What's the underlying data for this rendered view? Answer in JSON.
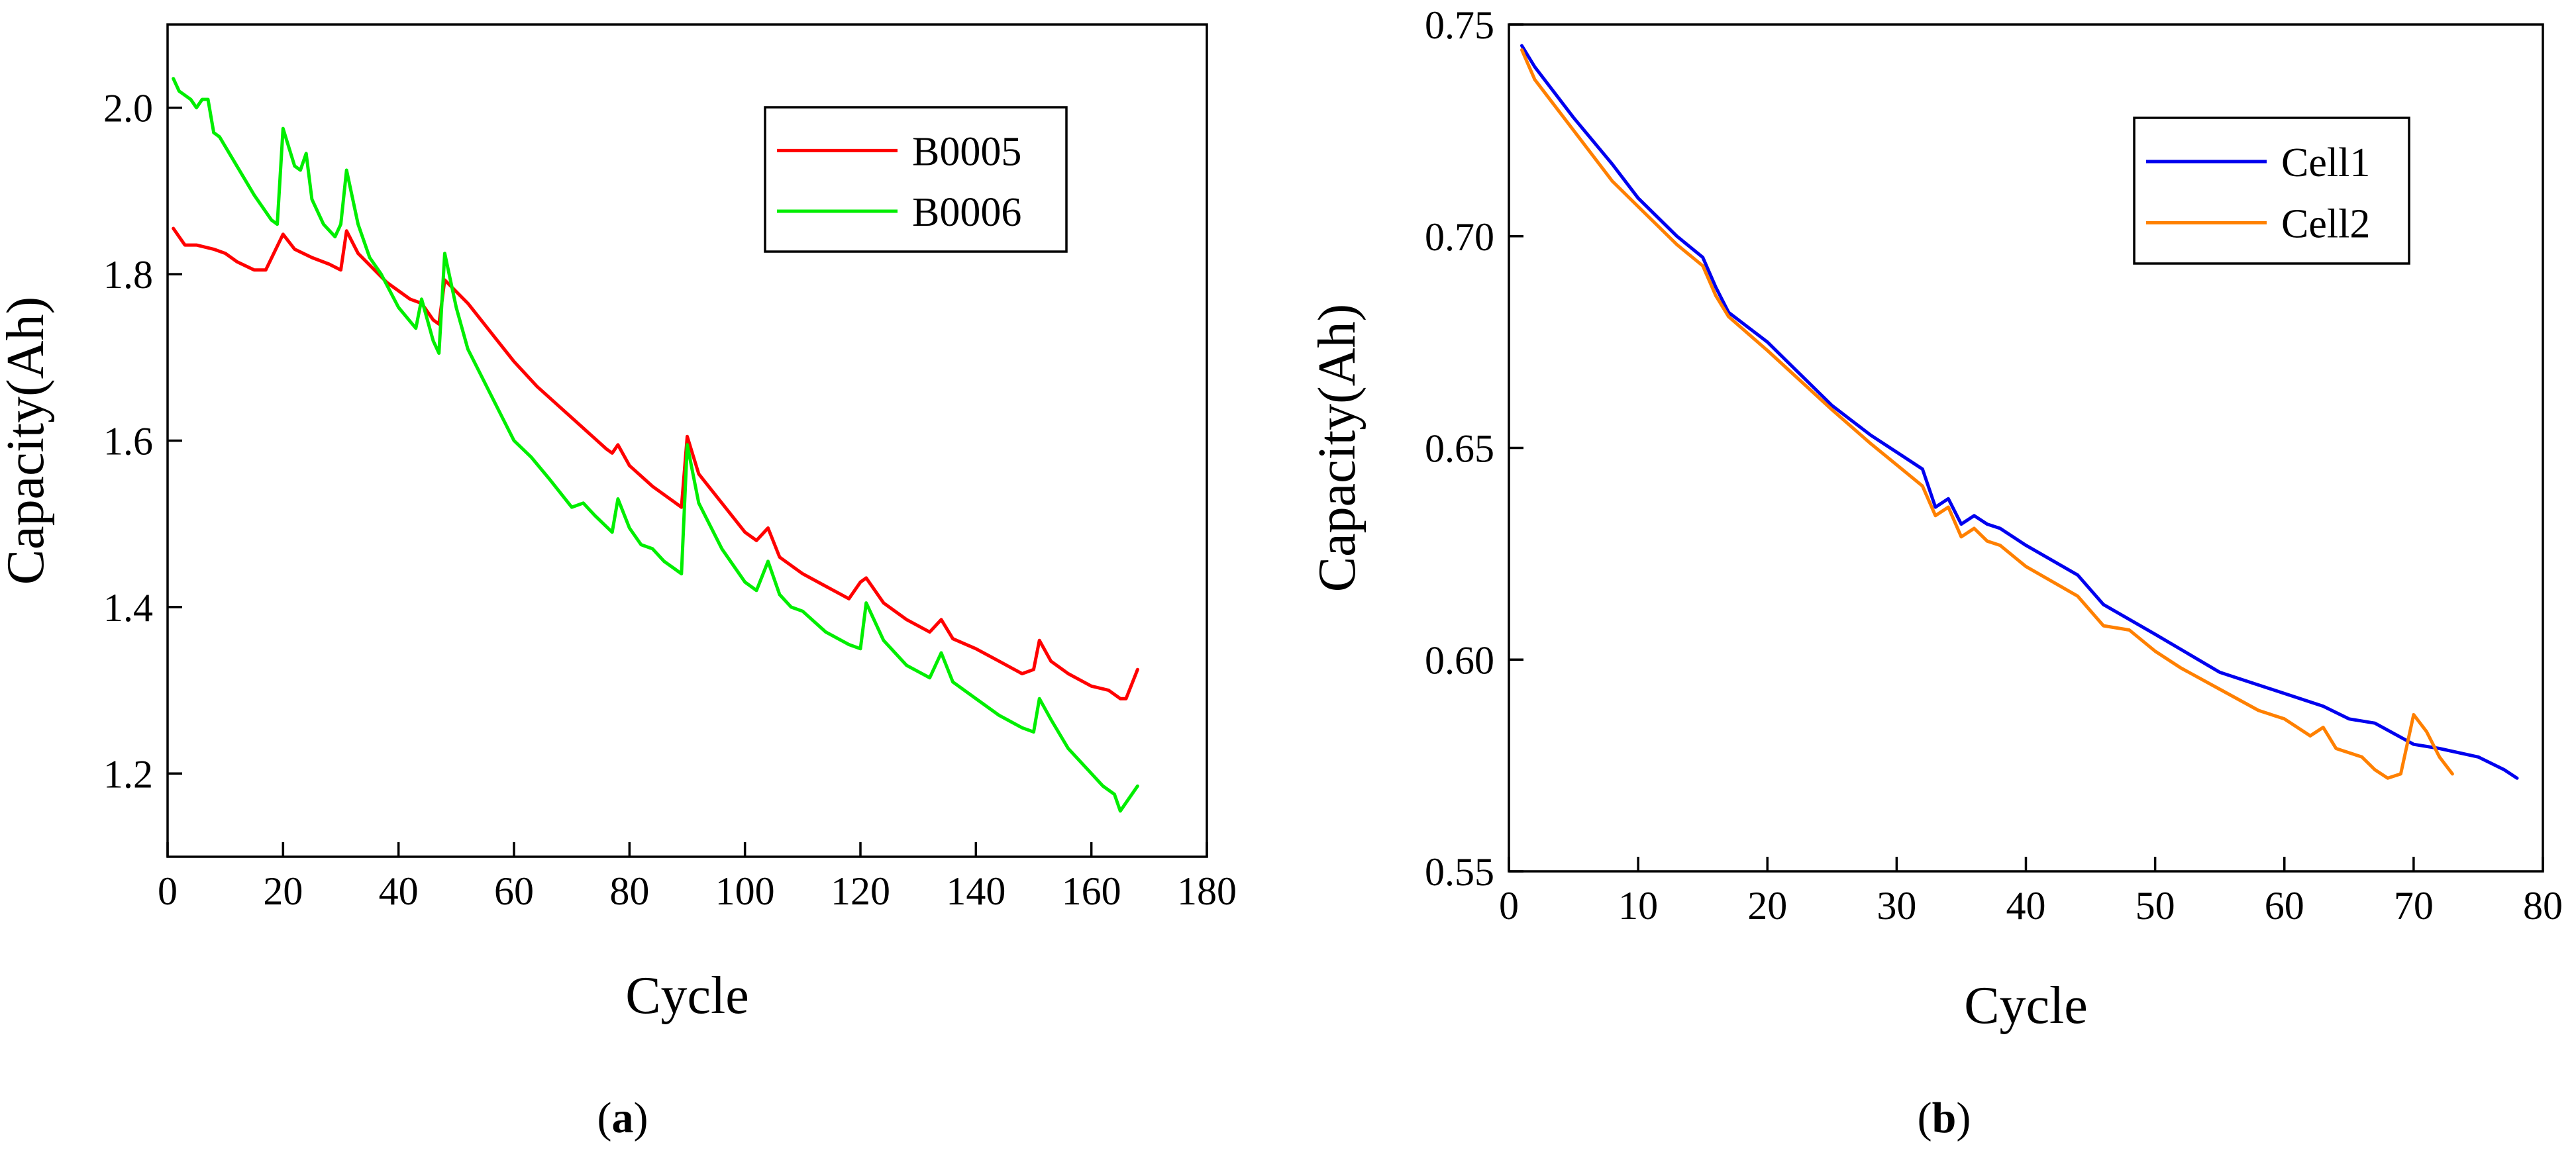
{
  "chart_data": [
    {
      "type": "line",
      "panel_label": "(a)",
      "panel_letter": "a",
      "xlabel": "Cycle",
      "ylabel": "Capacity(Ah)",
      "xlim": [
        0,
        180
      ],
      "ylim": [
        1.1,
        2.1
      ],
      "xticks": [
        0,
        20,
        40,
        60,
        80,
        100,
        120,
        140,
        160,
        180
      ],
      "yticks": [
        1.2,
        1.4,
        1.6,
        1.8,
        2.0
      ],
      "xtick_labels": [
        "0",
        "20",
        "40",
        "60",
        "80",
        "100",
        "120",
        "140",
        "160",
        "180"
      ],
      "ytick_labels": [
        "1.2",
        "1.4",
        "1.6",
        "1.8",
        "2.0"
      ],
      "legend_position": "top-right",
      "series": [
        {
          "name": "B0005",
          "color": "#ff0000",
          "x": [
            1,
            3,
            5,
            8,
            10,
            12,
            15,
            17,
            20,
            22,
            25,
            28,
            30,
            31,
            33,
            38,
            42,
            44,
            46,
            47,
            48,
            52,
            56,
            60,
            64,
            68,
            72,
            76,
            77,
            78,
            80,
            84,
            88,
            89,
            90,
            92,
            96,
            100,
            102,
            104,
            106,
            110,
            114,
            118,
            120,
            121,
            124,
            128,
            132,
            134,
            136,
            140,
            144,
            148,
            150,
            151,
            153,
            156,
            160,
            163,
            165,
            166,
            168
          ],
          "values": [
            1.855,
            1.835,
            1.835,
            1.83,
            1.825,
            1.815,
            1.805,
            1.805,
            1.848,
            1.83,
            1.82,
            1.812,
            1.805,
            1.852,
            1.825,
            1.79,
            1.77,
            1.765,
            1.745,
            1.74,
            1.793,
            1.765,
            1.73,
            1.695,
            1.665,
            1.64,
            1.615,
            1.59,
            1.585,
            1.595,
            1.57,
            1.545,
            1.525,
            1.52,
            1.605,
            1.56,
            1.525,
            1.49,
            1.48,
            1.495,
            1.46,
            1.44,
            1.425,
            1.41,
            1.43,
            1.435,
            1.405,
            1.385,
            1.37,
            1.385,
            1.362,
            1.35,
            1.335,
            1.32,
            1.325,
            1.36,
            1.335,
            1.32,
            1.305,
            1.3,
            1.29,
            1.29,
            1.325
          ]
        },
        {
          "name": "B0006",
          "color": "#00ee00",
          "x": [
            1,
            2,
            4,
            5,
            6,
            7,
            8,
            9,
            12,
            15,
            18,
            19,
            20,
            22,
            23,
            24,
            25,
            27,
            29,
            30,
            31,
            33,
            35,
            37,
            40,
            43,
            44,
            46,
            47,
            48,
            50,
            52,
            56,
            60,
            63,
            66,
            70,
            72,
            74,
            77,
            78,
            80,
            82,
            84,
            86,
            88,
            89,
            90,
            92,
            96,
            100,
            102,
            104,
            106,
            108,
            110,
            114,
            118,
            120,
            121,
            124,
            128,
            132,
            134,
            136,
            140,
            144,
            148,
            150,
            151,
            153,
            156,
            160,
            162,
            164,
            165,
            166,
            168
          ],
          "values": [
            2.035,
            2.02,
            2.01,
            2.0,
            2.01,
            2.01,
            1.97,
            1.965,
            1.93,
            1.895,
            1.865,
            1.86,
            1.975,
            1.93,
            1.925,
            1.945,
            1.89,
            1.86,
            1.845,
            1.86,
            1.925,
            1.86,
            1.82,
            1.8,
            1.76,
            1.735,
            1.77,
            1.72,
            1.705,
            1.825,
            1.76,
            1.71,
            1.655,
            1.6,
            1.58,
            1.555,
            1.52,
            1.525,
            1.51,
            1.49,
            1.53,
            1.495,
            1.475,
            1.47,
            1.455,
            1.445,
            1.44,
            1.595,
            1.525,
            1.47,
            1.43,
            1.42,
            1.455,
            1.415,
            1.4,
            1.395,
            1.37,
            1.355,
            1.35,
            1.405,
            1.36,
            1.33,
            1.315,
            1.345,
            1.31,
            1.29,
            1.27,
            1.255,
            1.25,
            1.29,
            1.265,
            1.23,
            1.2,
            1.185,
            1.175,
            1.155,
            1.165,
            1.185
          ]
        }
      ]
    },
    {
      "type": "line",
      "panel_label": "(b)",
      "panel_letter": "b",
      "xlabel": "Cycle",
      "ylabel": "Capacity(Ah)",
      "xlim": [
        0,
        80
      ],
      "ylim": [
        0.55,
        0.75
      ],
      "xticks": [
        0,
        10,
        20,
        30,
        40,
        50,
        60,
        70,
        80
      ],
      "yticks": [
        0.55,
        0.6,
        0.65,
        0.7,
        0.75
      ],
      "xtick_labels": [
        "0",
        "10",
        "20",
        "30",
        "40",
        "50",
        "60",
        "70",
        "80"
      ],
      "ytick_labels": [
        "0.55",
        "0.60",
        "0.65",
        "0.70",
        "0.75"
      ],
      "legend_position": "top-right",
      "series": [
        {
          "name": "Cell1",
          "color": "#0000ee",
          "x": [
            1,
            2,
            3,
            5,
            8,
            10,
            13,
            15,
            16,
            17,
            20,
            25,
            28,
            30,
            32,
            33,
            34,
            35,
            36,
            37,
            38,
            40,
            44,
            46,
            50,
            55,
            60,
            63,
            65,
            67,
            70,
            72,
            75,
            77,
            78
          ],
          "values": [
            0.745,
            0.74,
            0.736,
            0.728,
            0.717,
            0.709,
            0.7,
            0.695,
            0.688,
            0.682,
            0.675,
            0.66,
            0.653,
            0.649,
            0.645,
            0.636,
            0.638,
            0.632,
            0.634,
            0.632,
            0.631,
            0.627,
            0.62,
            0.613,
            0.606,
            0.597,
            0.592,
            0.589,
            0.586,
            0.585,
            0.58,
            0.579,
            0.577,
            0.574,
            0.572
          ]
        },
        {
          "name": "Cell2",
          "color": "#ff8000",
          "x": [
            1,
            2,
            3,
            5,
            8,
            10,
            13,
            15,
            16,
            17,
            20,
            25,
            28,
            30,
            32,
            33,
            34,
            35,
            36,
            37,
            38,
            40,
            44,
            46,
            48,
            50,
            52,
            55,
            58,
            60,
            62,
            63,
            64,
            66,
            67,
            68,
            69,
            70,
            71,
            72,
            73
          ],
          "values": [
            0.744,
            0.737,
            0.733,
            0.725,
            0.713,
            0.707,
            0.698,
            0.693,
            0.686,
            0.681,
            0.673,
            0.659,
            0.651,
            0.646,
            0.641,
            0.634,
            0.636,
            0.629,
            0.631,
            0.628,
            0.627,
            0.622,
            0.615,
            0.608,
            0.607,
            0.602,
            0.598,
            0.593,
            0.588,
            0.586,
            0.582,
            0.584,
            0.579,
            0.577,
            0.574,
            0.572,
            0.573,
            0.587,
            0.583,
            0.577,
            0.573
          ]
        }
      ]
    }
  ]
}
